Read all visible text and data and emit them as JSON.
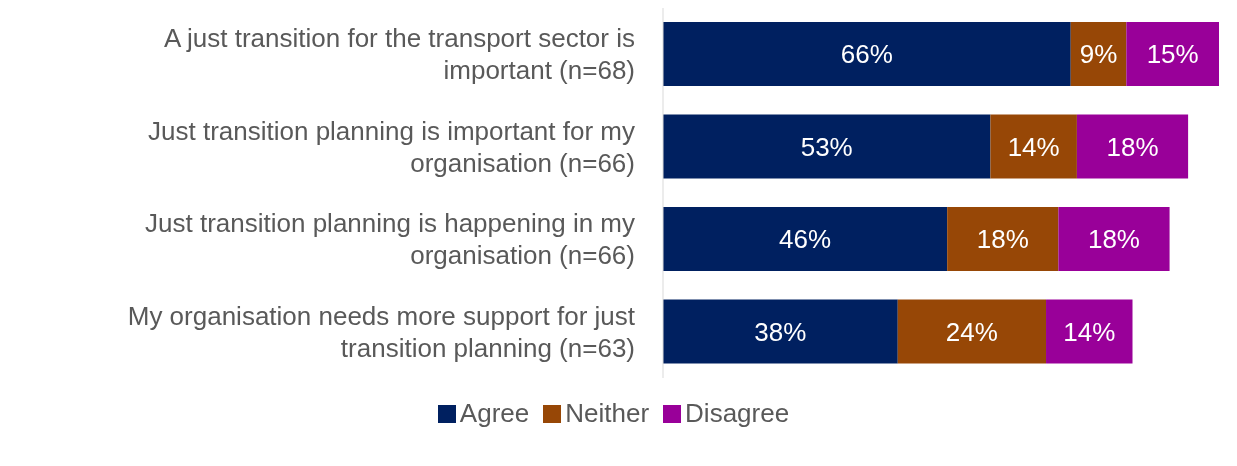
{
  "chart_data": {
    "type": "bar",
    "orientation": "horizontal",
    "stacked": true,
    "legend": "bottom",
    "grid": false,
    "categories": [
      "A just transition for the transport sector is important (n=68)",
      "Just transition planning is important for my organisation (n=66)",
      "Just transition planning is happening in my organisation (n=66)",
      "My organisation needs more support for just transition planning (n=63)"
    ],
    "series": [
      {
        "name": "Agree",
        "color": "#002060",
        "values": [
          66,
          53,
          46,
          38
        ],
        "value_labels": [
          "66%",
          "53%",
          "46%",
          "38%"
        ]
      },
      {
        "name": "Neither",
        "color": "#974706",
        "values": [
          9,
          14,
          18,
          24
        ],
        "value_labels": [
          "9%",
          "14%",
          "18%",
          "24%"
        ]
      },
      {
        "name": "Disagree",
        "color": "#990099",
        "values": [
          15,
          18,
          18,
          14
        ],
        "value_labels": [
          "15%",
          "18%",
          "18%",
          "14%"
        ]
      }
    ]
  }
}
